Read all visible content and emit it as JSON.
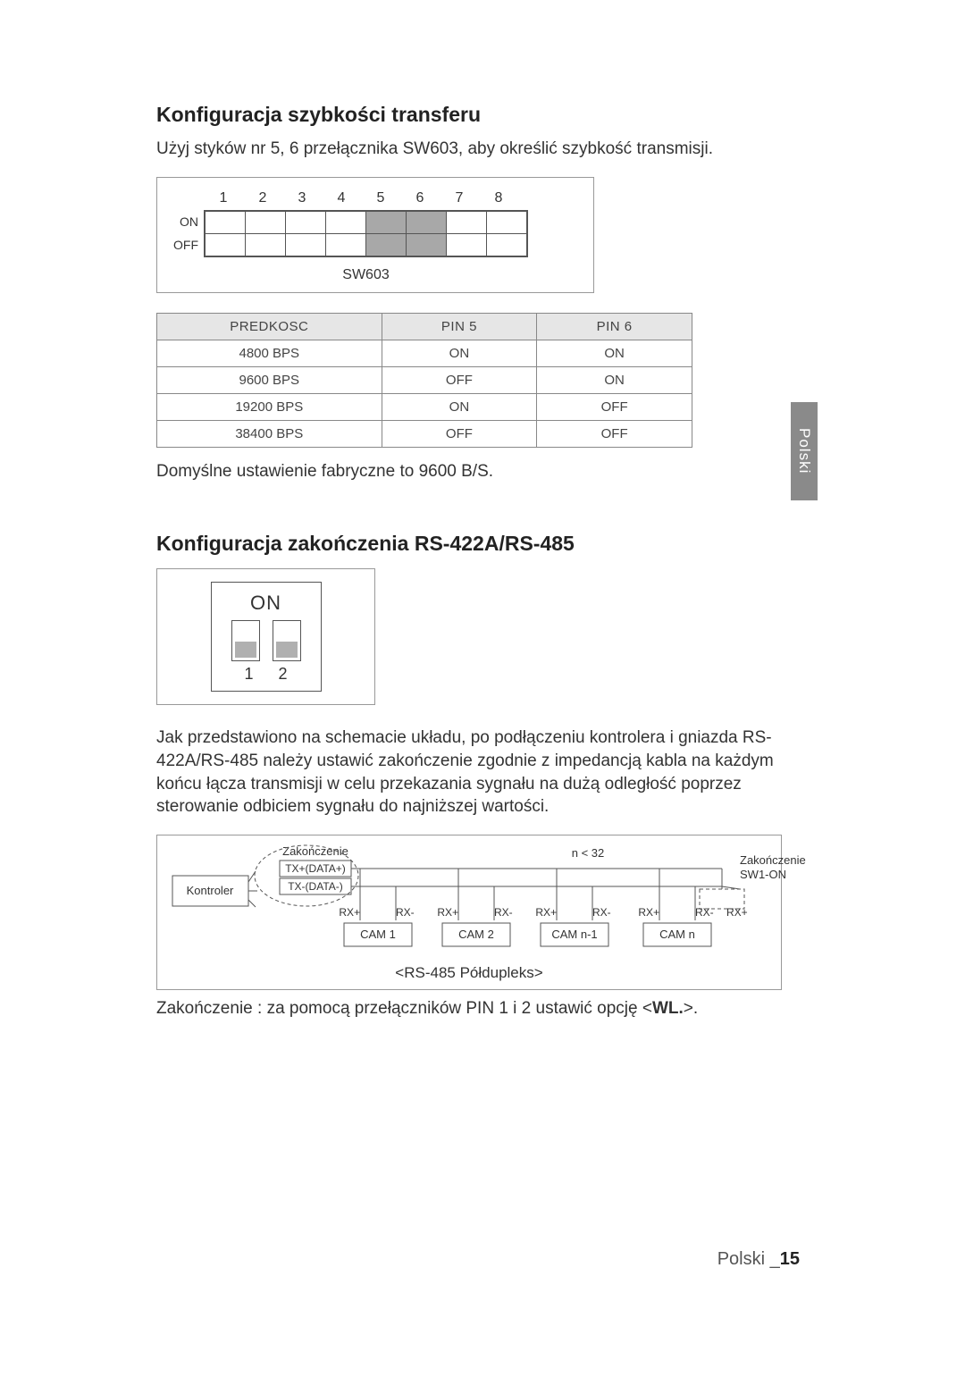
{
  "side_tab": "Polski",
  "footer": {
    "text": "Polski _",
    "page": "15"
  },
  "section1": {
    "heading": "Konfiguracja szybkości transferu",
    "intro": "Użyj styków nr 5, 6 przełącznika SW603, aby określić szybkość transmisji.",
    "dip": {
      "label": "SW603",
      "row_labels": [
        "ON",
        "OFF"
      ],
      "pin_count": 8,
      "shaded_cols": [
        5,
        6
      ],
      "cell_shaded_color": "#a8a8a8",
      "border_color": "#555555"
    },
    "table": {
      "headers": [
        "PREDKOSC",
        "PIN 5",
        "PIN 6"
      ],
      "rows": [
        [
          "4800 BPS",
          "ON",
          "ON"
        ],
        [
          "9600 BPS",
          "OFF",
          "ON"
        ],
        [
          "19200 BPS",
          "ON",
          "OFF"
        ],
        [
          "38400 BPS",
          "OFF",
          "OFF"
        ]
      ],
      "header_bg": "#e6e6e6",
      "border_color": "#888888"
    },
    "outro": "Domyślne ustawienie fabryczne to 9600 B/S."
  },
  "section2": {
    "heading": "Konfiguracja zakończenia RS-422A/RS-485",
    "sw2": {
      "title": "ON",
      "pin_labels": [
        "1",
        "2"
      ],
      "slider_color": "#b0b0b0"
    },
    "paragraph": "Jak przedstawiono na schemacie układu, po podłączeniu kontrolera i gniazda RS-422A/RS-485 należy ustawić zakończenie zgodnie z impedancją kabla na każdym końcu łącza transmisji w celu przekazania sygnału na dużą odległość poprzez sterowanie odbiciem sygnału do najniższej wartości.",
    "diagram": {
      "controller": "Kontroler",
      "termination_left": "Zakończenie",
      "tx_plus": "TX+(DATA+)",
      "tx_minus": "TX-(DATA-)",
      "rx_plus": "RX+",
      "rx_minus": "RX-",
      "n_label": "n < 32",
      "termination_right": "Zakończenie",
      "sw1_on": "SW1-ON",
      "cams": [
        "CAM 1",
        "CAM 2",
        "CAM n-1",
        "CAM n"
      ],
      "caption": "<RS-485 Półdupleks>",
      "line_color": "#555555",
      "text_color": "#333333"
    },
    "termination_line_prefix": "Zakończenie : za pomocą przełączników PIN 1 i 2 ustawić opcję <",
    "termination_line_bold": "WL.",
    "termination_line_suffix": ">."
  }
}
